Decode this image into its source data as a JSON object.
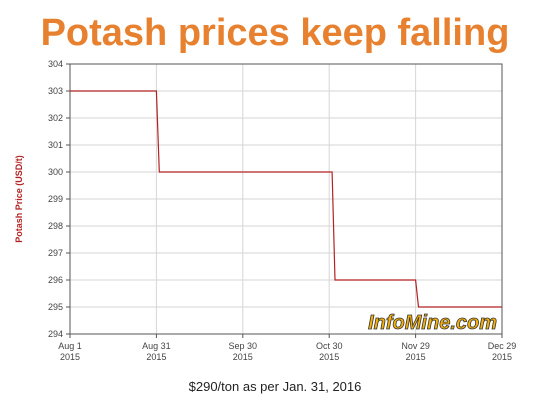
{
  "title": "Potash prices keep falling",
  "caption": "$290/ton as per Jan. 31, 2016",
  "watermark": "InfoMine.com",
  "colors": {
    "title": "#e8812f",
    "line": "#b22222",
    "ylabel": "#b22222",
    "watermark": "#f5b10a"
  },
  "chart_data": {
    "type": "line",
    "title": "",
    "ylabel": "Potash Price (USD/t)",
    "xlabel": "",
    "ylim": [
      294,
      304
    ],
    "xlim": [
      "2015-08-01",
      "2015-12-29"
    ],
    "yticks": [
      294,
      295,
      296,
      297,
      298,
      299,
      300,
      301,
      302,
      303,
      304
    ],
    "xticks": [
      {
        "date": "2015-08-01",
        "line1": "Aug 1",
        "line2": "2015"
      },
      {
        "date": "2015-08-31",
        "line1": "Aug 31",
        "line2": "2015"
      },
      {
        "date": "2015-09-30",
        "line1": "Sep 30",
        "line2": "2015"
      },
      {
        "date": "2015-10-30",
        "line1": "Oct 30",
        "line2": "2015"
      },
      {
        "date": "2015-11-29",
        "line1": "Nov 29",
        "line2": "2015"
      },
      {
        "date": "2015-12-29",
        "line1": "Dec 29",
        "line2": "2015"
      }
    ],
    "grid": true,
    "series": [
      {
        "points": [
          {
            "x": "2015-08-01",
            "y": 303
          },
          {
            "x": "2015-08-31",
            "y": 303
          },
          {
            "x": "2015-09-01",
            "y": 300
          },
          {
            "x": "2015-10-31",
            "y": 300
          },
          {
            "x": "2015-11-01",
            "y": 296
          },
          {
            "x": "2015-11-29",
            "y": 296
          },
          {
            "x": "2015-11-30",
            "y": 295
          },
          {
            "x": "2015-12-29",
            "y": 295
          }
        ]
      }
    ]
  }
}
